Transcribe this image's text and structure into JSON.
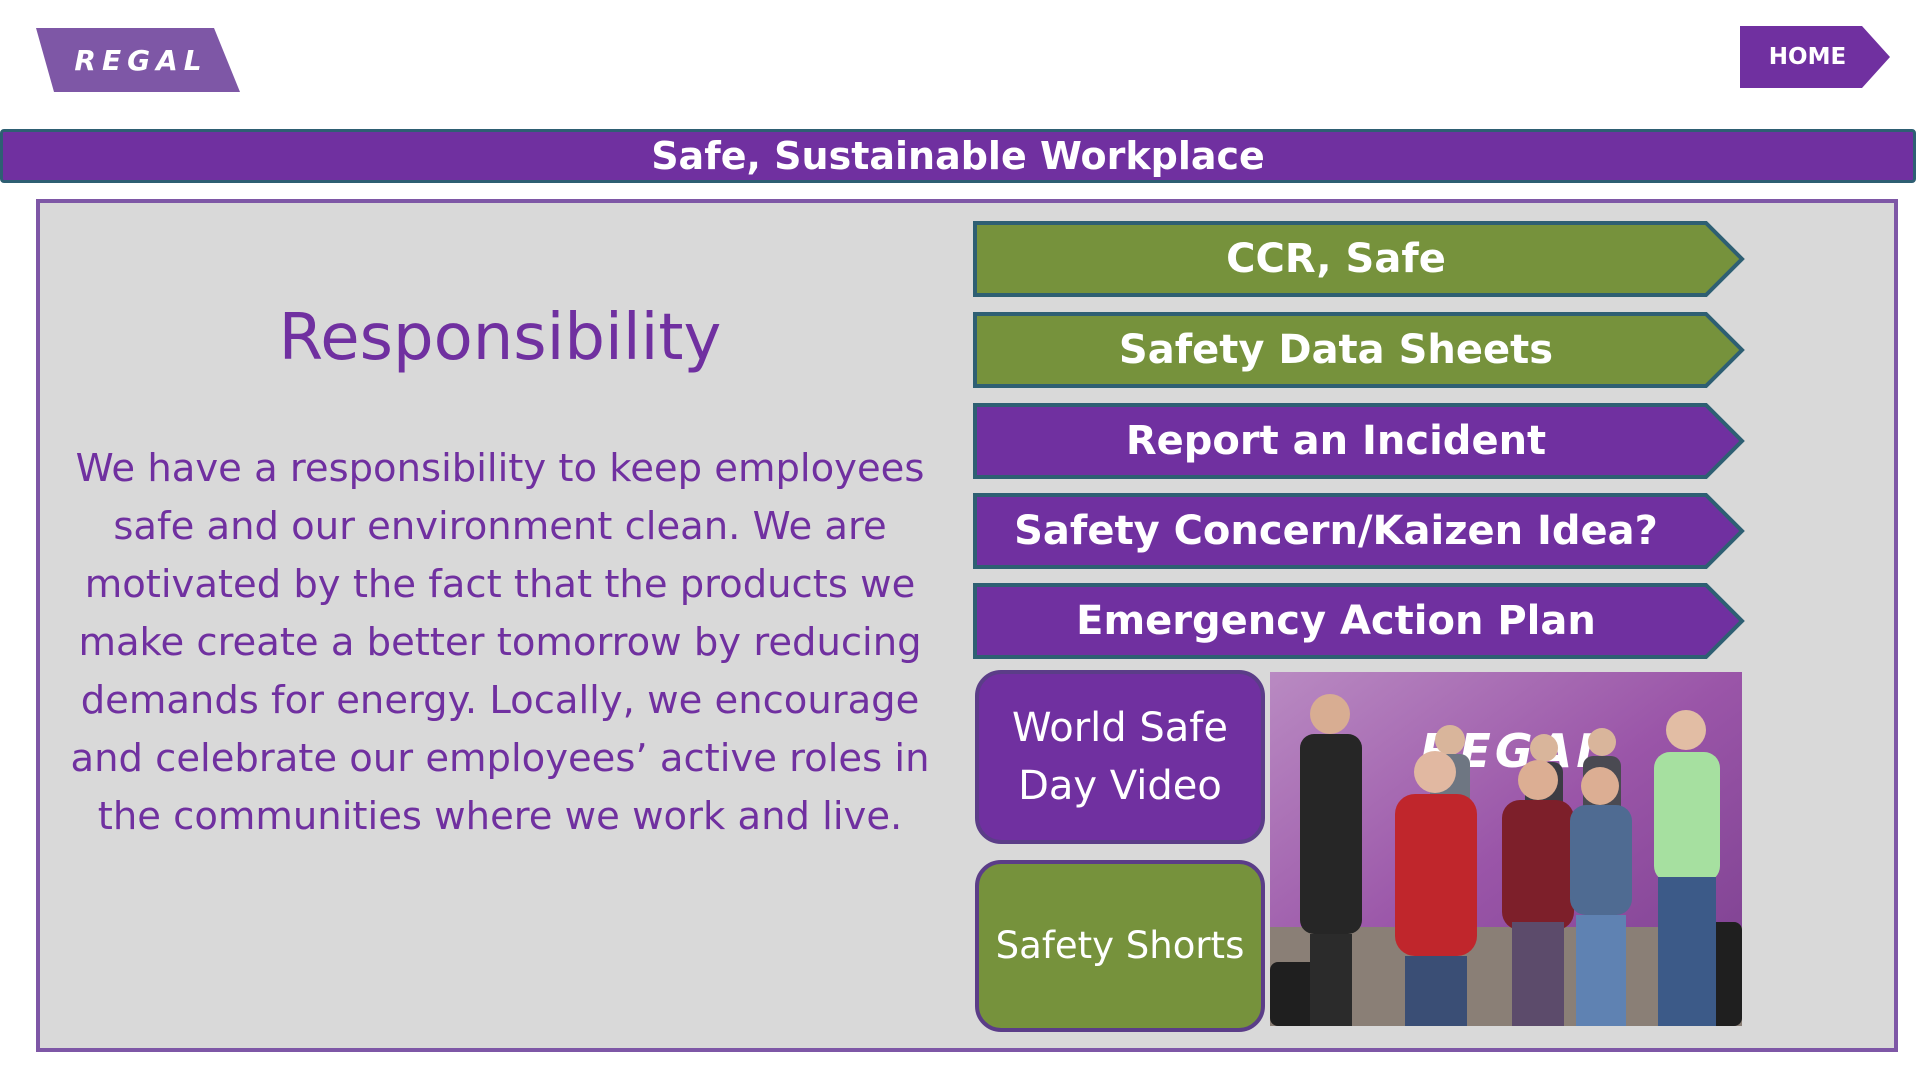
{
  "header": {
    "logo_text": "REGAL",
    "home_label": "HOME"
  },
  "banner": {
    "title": "Safe, Sustainable Workplace"
  },
  "content": {
    "heading": "Responsibility",
    "body": "We have a responsibility to keep employees safe and our environment clean. We are motivated by the fact that the products we make create a better tomorrow by reducing demands for energy. Locally, we encourage and celebrate our employees’ active roles in the communities where we work and live."
  },
  "links": [
    {
      "label": "CCR, Safe",
      "color": "#76923c"
    },
    {
      "label": "Safety Data Sheets",
      "color": "#76923c"
    },
    {
      "label": "Report an Incident",
      "color": "#7030a0"
    },
    {
      "label": "Safety Concern/Kaizen Idea?",
      "color": "#7030a0"
    },
    {
      "label": "Emergency Action Plan",
      "color": "#7030a0"
    }
  ],
  "media": {
    "video_label_line1": "World Safe",
    "video_label_line2": "Day Video",
    "shorts_label": "Safety Shorts",
    "photo_wall_text": "REGAL"
  },
  "colors": {
    "brand_purple": "#7030a0",
    "accent_green": "#76923c",
    "panel_gray": "#d9d9d9",
    "outline_teal": "#2e5f73"
  }
}
